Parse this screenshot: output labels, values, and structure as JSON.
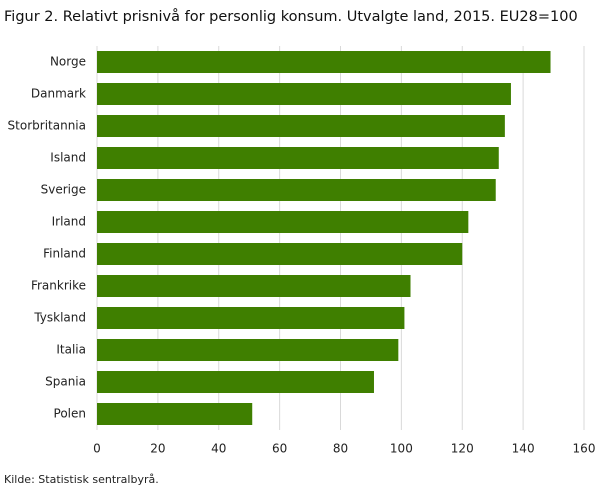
{
  "chart_data": {
    "type": "bar",
    "orientation": "horizontal",
    "title": "Figur 2. Relativt prisnivå for personlig konsum. Utvalgte land, 2015. EU28=100",
    "categories": [
      "Norge",
      "Danmark",
      "Storbritannia",
      "Island",
      "Sverige",
      "Irland",
      "Finland",
      "Frankrike",
      "Tyskland",
      "Italia",
      "Spania",
      "Polen"
    ],
    "values": [
      149,
      136,
      134,
      132,
      131,
      122,
      120,
      103,
      101,
      99,
      91,
      51
    ],
    "color": "#3f7f00",
    "xlim": [
      0,
      160
    ],
    "xticks": [
      0,
      20,
      40,
      60,
      80,
      100,
      120,
      140,
      160
    ],
    "grid": true,
    "source": "Kilde: Statistisk sentralbyrå."
  }
}
